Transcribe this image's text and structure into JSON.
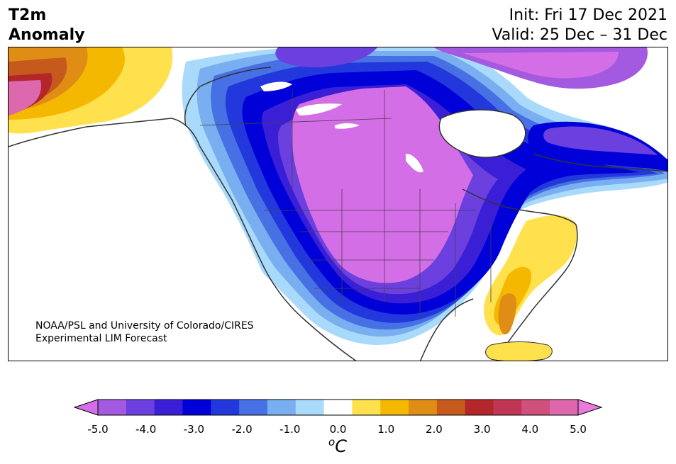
{
  "header": {
    "title_line1": "T2m",
    "title_line2": "Anomaly",
    "init": "Init: Fri 17 Dec 2021",
    "valid": "Valid: 25 Dec – 31 Dec"
  },
  "credit": {
    "line1": "NOAA/PSL and University of Colorado/CIRES",
    "line2": "Experimental LIM Forecast"
  },
  "colorbar": {
    "colors": [
      "#d46ee6",
      "#a35ae0",
      "#6c3fdf",
      "#3a1fd6",
      "#0000d8",
      "#2238dd",
      "#4670e3",
      "#79aef0",
      "#a9dafb",
      "#ffffff",
      "#ffe14d",
      "#f4b800",
      "#e08d15",
      "#c65a1c",
      "#b3272a",
      "#c03654",
      "#d0507c",
      "#dd68ad",
      "#ea7adc"
    ],
    "tick_labels": [
      "-5.0",
      "-4.0",
      "-3.0",
      "-2.0",
      "-1.0",
      "0.0",
      "1.0",
      "2.0",
      "3.0",
      "4.0",
      "5.0"
    ],
    "unit_base": "C",
    "unit_super": "o"
  }
}
